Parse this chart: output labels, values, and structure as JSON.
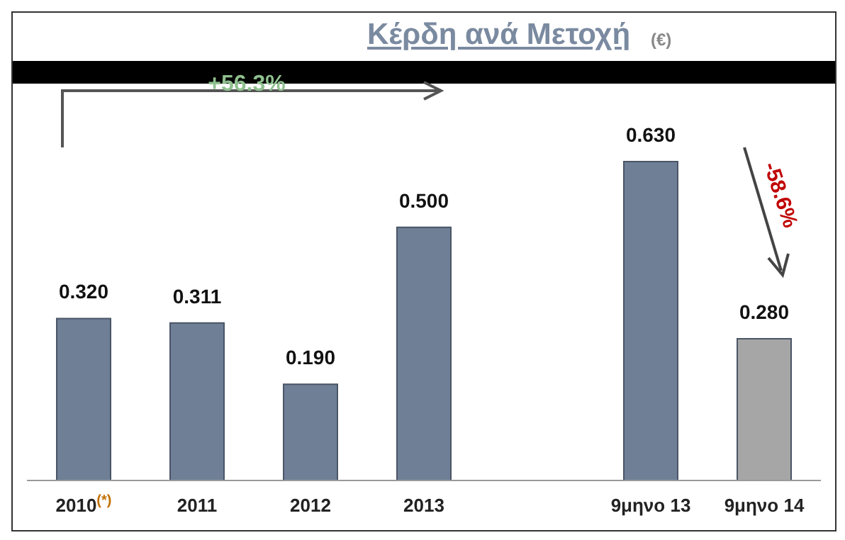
{
  "chart_data": {
    "type": "bar",
    "title": "Κέρδη ανά Μετοχή",
    "subtitle": "(€)",
    "categories": [
      "2010$^{(*)}$",
      "2011",
      "2012",
      "2013",
      null,
      "9μηνο 13",
      "9μηνο 14"
    ],
    "values": [
      0.32,
      0.311,
      0.19,
      0.5,
      null,
      0.63,
      0.28
    ],
    "colors": [
      "#6e7f96",
      "#6e7f96",
      "#6e7f96",
      "#6e7f96",
      "#6e7f96",
      "#6e7f96",
      "#a6a6a6"
    ],
    "value_labels": [
      "0.320",
      "0.311",
      "0.190",
      "0.500",
      null,
      "0.630",
      "0.280"
    ],
    "annotations": [
      "+56.3%",
      "-58.6%"
    ],
    "grid": false,
    "legend": false
  }
}
